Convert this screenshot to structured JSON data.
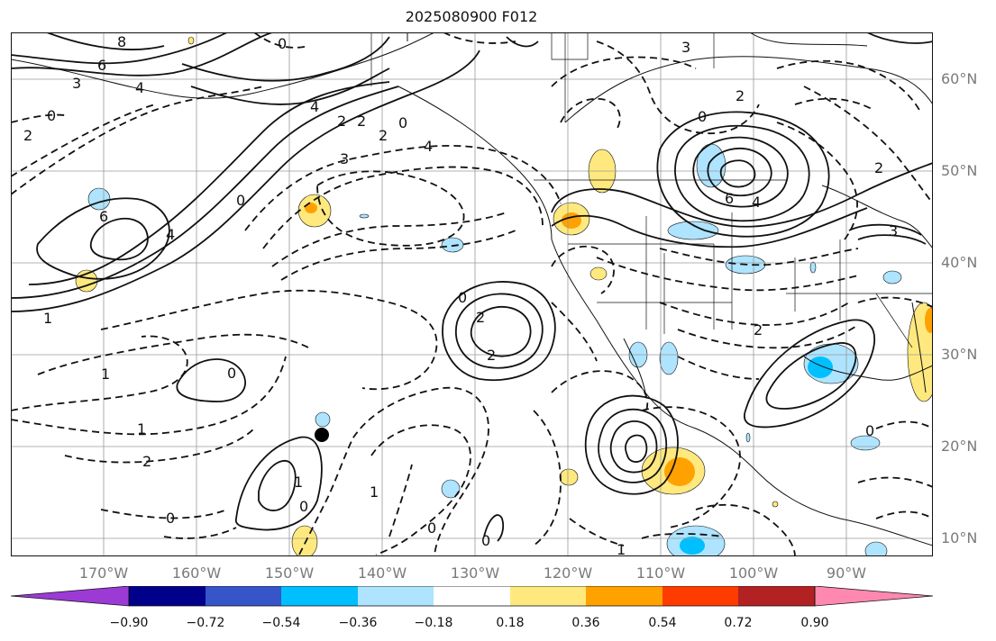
{
  "title": "2025080900 F012",
  "lat_labels": [
    "60°N",
    "50°N",
    "40°N",
    "30°N",
    "20°N",
    "10°N"
  ],
  "lon_labels": [
    "170°W",
    "160°W",
    "150°W",
    "140°W",
    "130°W",
    "120°W",
    "110°W",
    "100°W",
    "90°W"
  ],
  "colorbar": {
    "ticks": [
      "−0.90",
      "−0.72",
      "−0.54",
      "−0.36",
      "−0.18",
      "0.18",
      "0.36",
      "0.54",
      "0.72",
      "0.90"
    ],
    "colors": [
      "#9c3ad6",
      "#00008b",
      "#3555c8",
      "#00bfff",
      "#aee4ff",
      "#ffffff",
      "#ffe97f",
      "#ffa200",
      "#ff3c00",
      "#b22222",
      "#ff88b0"
    ]
  },
  "contour_labels": {
    "l0": "8",
    "l1": "6",
    "l2": "4",
    "l3": "3",
    "l4": "4",
    "l5": "2",
    "l6": "2",
    "l7": "0",
    "l8": "2",
    "l9": "4",
    "l10": "3",
    "l11": "0",
    "l12": "6",
    "l13": "4",
    "l14": "2",
    "l15": "0",
    "l16": "1",
    "l17": "0",
    "l18": "2",
    "l19": "2",
    "l20": "3",
    "l21": "6",
    "l22": "4",
    "l23": "2",
    "l24": "2",
    "l25": "0",
    "l26": "0",
    "l27": "1",
    "l28": "1",
    "l29": "2",
    "l30": "0",
    "l31": "0",
    "l32": "1",
    "l33": "0",
    "l34": "0",
    "l35": "1",
    "l36": "0",
    "l37": "1",
    "l38": "3",
    "l39": "0",
    "l40": "2"
  },
  "point_marker": "black-dot"
}
